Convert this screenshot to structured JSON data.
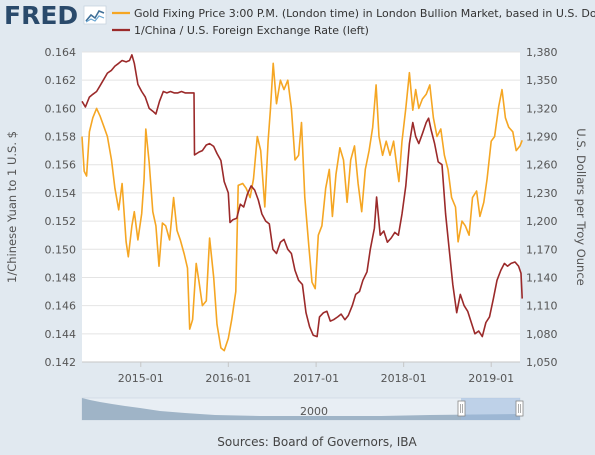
{
  "header": {
    "logo_text": "FRED",
    "logo_icon": "chart-sparkline-icon",
    "legend": [
      {
        "label": "Gold Fixing Price 3:00 P.M. (London time) in London Bullion Market, based in U.S. Dollars (right)",
        "color": "#f5a623"
      },
      {
        "label": "1/China / U.S. Foreign Exchange Rate (left)",
        "color": "#9b2a2a"
      }
    ]
  },
  "footer": {
    "source": "Sources: Board of Governors, IBA",
    "navigator_label": "2000"
  },
  "chart_data": {
    "type": "line",
    "title": "",
    "xlabel": "",
    "x_ticks": [
      "2015-01",
      "2016-01",
      "2017-01",
      "2018-01",
      "2019-01"
    ],
    "x_range": [
      "2014-05",
      "2019-05"
    ],
    "y_left": {
      "label": "1/Chinese Yuan to 1 U.S. $",
      "ticks": [
        "0.142",
        "0.144",
        "0.146",
        "0.148",
        "0.150",
        "0.152",
        "0.154",
        "0.156",
        "0.158",
        "0.160",
        "0.162",
        "0.164"
      ],
      "range": [
        0.142,
        0.164
      ]
    },
    "y_right": {
      "label": "U.S. Dollars per Troy Ounce",
      "ticks": [
        "1,050",
        "1,080",
        "1,110",
        "1,140",
        "1,170",
        "1,200",
        "1,230",
        "1,260",
        "1,290",
        "1,320",
        "1,350",
        "1,380"
      ],
      "range": [
        1050,
        1380
      ]
    },
    "grid": "horizontal",
    "series": [
      {
        "name": "Gold Fixing Price 3:00 P.M. (London time) in London Bullion Market, based in U.S. Dollars (right)",
        "axis": "right",
        "color": "#f5a623",
        "points": [
          [
            "2014-05-01",
            1290
          ],
          [
            "2014-05-10",
            1253
          ],
          [
            "2014-05-20",
            1248
          ],
          [
            "2014-06-01",
            1295
          ],
          [
            "2014-06-15",
            1310
          ],
          [
            "2014-07-01",
            1320
          ],
          [
            "2014-07-15",
            1312
          ],
          [
            "2014-08-01",
            1300
          ],
          [
            "2014-08-15",
            1290
          ],
          [
            "2014-09-01",
            1265
          ],
          [
            "2014-09-15",
            1235
          ],
          [
            "2014-10-01",
            1212
          ],
          [
            "2014-10-15",
            1240
          ],
          [
            "2014-11-01",
            1178
          ],
          [
            "2014-11-10",
            1162
          ],
          [
            "2014-11-25",
            1195
          ],
          [
            "2014-12-05",
            1210
          ],
          [
            "2014-12-20",
            1180
          ],
          [
            "2015-01-05",
            1208
          ],
          [
            "2015-01-15",
            1245
          ],
          [
            "2015-01-22",
            1298
          ],
          [
            "2015-02-05",
            1262
          ],
          [
            "2015-02-20",
            1210
          ],
          [
            "2015-03-05",
            1195
          ],
          [
            "2015-03-18",
            1152
          ],
          [
            "2015-04-01",
            1198
          ],
          [
            "2015-04-15",
            1195
          ],
          [
            "2015-05-01",
            1180
          ],
          [
            "2015-05-18",
            1225
          ],
          [
            "2015-06-01",
            1190
          ],
          [
            "2015-06-15",
            1180
          ],
          [
            "2015-07-01",
            1165
          ],
          [
            "2015-07-15",
            1150
          ],
          [
            "2015-07-24",
            1085
          ],
          [
            "2015-08-05",
            1095
          ],
          [
            "2015-08-20",
            1155
          ],
          [
            "2015-09-01",
            1135
          ],
          [
            "2015-09-15",
            1110
          ],
          [
            "2015-10-01",
            1115
          ],
          [
            "2015-10-15",
            1182
          ],
          [
            "2015-11-01",
            1140
          ],
          [
            "2015-11-15",
            1090
          ],
          [
            "2015-12-01",
            1065
          ],
          [
            "2015-12-15",
            1062
          ],
          [
            "2016-01-01",
            1075
          ],
          [
            "2016-01-15",
            1095
          ],
          [
            "2016-02-01",
            1125
          ],
          [
            "2016-02-11",
            1238
          ],
          [
            "2016-03-01",
            1240
          ],
          [
            "2016-03-15",
            1235
          ],
          [
            "2016-04-01",
            1225
          ],
          [
            "2016-04-15",
            1245
          ],
          [
            "2016-05-01",
            1290
          ],
          [
            "2016-05-15",
            1275
          ],
          [
            "2016-06-01",
            1215
          ],
          [
            "2016-06-15",
            1285
          ],
          [
            "2016-06-25",
            1320
          ],
          [
            "2016-07-06",
            1368
          ],
          [
            "2016-07-20",
            1325
          ],
          [
            "2016-08-05",
            1350
          ],
          [
            "2016-08-20",
            1340
          ],
          [
            "2016-09-05",
            1350
          ],
          [
            "2016-09-20",
            1320
          ],
          [
            "2016-10-05",
            1265
          ],
          [
            "2016-10-20",
            1270
          ],
          [
            "2016-11-01",
            1305
          ],
          [
            "2016-11-15",
            1225
          ],
          [
            "2016-12-01",
            1175
          ],
          [
            "2016-12-15",
            1135
          ],
          [
            "2016-12-28",
            1128
          ],
          [
            "2017-01-10",
            1185
          ],
          [
            "2017-01-25",
            1195
          ],
          [
            "2017-02-10",
            1235
          ],
          [
            "2017-02-25",
            1255
          ],
          [
            "2017-03-10",
            1205
          ],
          [
            "2017-03-25",
            1250
          ],
          [
            "2017-04-10",
            1278
          ],
          [
            "2017-04-25",
            1265
          ],
          [
            "2017-05-10",
            1220
          ],
          [
            "2017-05-25",
            1265
          ],
          [
            "2017-06-10",
            1280
          ],
          [
            "2017-06-25",
            1240
          ],
          [
            "2017-07-10",
            1210
          ],
          [
            "2017-07-25",
            1255
          ],
          [
            "2017-08-10",
            1275
          ],
          [
            "2017-08-25",
            1300
          ],
          [
            "2017-09-08",
            1345
          ],
          [
            "2017-09-20",
            1290
          ],
          [
            "2017-10-05",
            1270
          ],
          [
            "2017-10-20",
            1285
          ],
          [
            "2017-11-05",
            1270
          ],
          [
            "2017-11-20",
            1285
          ],
          [
            "2017-12-05",
            1255
          ],
          [
            "2017-12-12",
            1242
          ],
          [
            "2017-12-25",
            1285
          ],
          [
            "2018-01-10",
            1320
          ],
          [
            "2018-01-25",
            1358
          ],
          [
            "2018-02-08",
            1318
          ],
          [
            "2018-02-20",
            1340
          ],
          [
            "2018-03-05",
            1320
          ],
          [
            "2018-03-20",
            1330
          ],
          [
            "2018-04-05",
            1335
          ],
          [
            "2018-04-20",
            1345
          ],
          [
            "2018-05-05",
            1310
          ],
          [
            "2018-05-20",
            1290
          ],
          [
            "2018-06-05",
            1298
          ],
          [
            "2018-06-20",
            1270
          ],
          [
            "2018-07-05",
            1255
          ],
          [
            "2018-07-20",
            1225
          ],
          [
            "2018-08-05",
            1215
          ],
          [
            "2018-08-16",
            1178
          ],
          [
            "2018-09-01",
            1200
          ],
          [
            "2018-09-15",
            1195
          ],
          [
            "2018-10-01",
            1185
          ],
          [
            "2018-10-15",
            1225
          ],
          [
            "2018-11-01",
            1232
          ],
          [
            "2018-11-15",
            1205
          ],
          [
            "2018-12-01",
            1220
          ],
          [
            "2018-12-15",
            1245
          ],
          [
            "2019-01-01",
            1285
          ],
          [
            "2019-01-15",
            1290
          ],
          [
            "2019-02-01",
            1322
          ],
          [
            "2019-02-15",
            1340
          ],
          [
            "2019-03-01",
            1310
          ],
          [
            "2019-03-15",
            1300
          ],
          [
            "2019-04-01",
            1295
          ],
          [
            "2019-04-15",
            1275
          ],
          [
            "2019-05-01",
            1280
          ],
          [
            "2019-05-10",
            1286
          ]
        ]
      },
      {
        "name": "1/China / U.S. Foreign Exchange Rate (left)",
        "axis": "left",
        "color": "#9b2a2a",
        "points": [
          [
            "2014-05-01",
            0.1605
          ],
          [
            "2014-05-15",
            0.1601
          ],
          [
            "2014-06-01",
            0.1608
          ],
          [
            "2014-06-15",
            0.161
          ],
          [
            "2014-07-01",
            0.1612
          ],
          [
            "2014-07-15",
            0.1616
          ],
          [
            "2014-08-01",
            0.1621
          ],
          [
            "2014-08-15",
            0.1625
          ],
          [
            "2014-09-01",
            0.1627
          ],
          [
            "2014-09-15",
            0.163
          ],
          [
            "2014-10-01",
            0.1632
          ],
          [
            "2014-10-15",
            0.1634
          ],
          [
            "2014-11-01",
            0.1633
          ],
          [
            "2014-11-15",
            0.1634
          ],
          [
            "2014-11-25",
            0.1638
          ],
          [
            "2014-12-05",
            0.1632
          ],
          [
            "2014-12-20",
            0.1617
          ],
          [
            "2015-01-05",
            0.1612
          ],
          [
            "2015-01-20",
            0.1608
          ],
          [
            "2015-02-05",
            0.16
          ],
          [
            "2015-02-20",
            0.1598
          ],
          [
            "2015-03-05",
            0.1596
          ],
          [
            "2015-03-20",
            0.1605
          ],
          [
            "2015-04-05",
            0.1612
          ],
          [
            "2015-04-20",
            0.1611
          ],
          [
            "2015-05-05",
            0.1612
          ],
          [
            "2015-05-20",
            0.1611
          ],
          [
            "2015-06-05",
            0.1611
          ],
          [
            "2015-06-20",
            0.1612
          ],
          [
            "2015-07-05",
            0.1611
          ],
          [
            "2015-07-20",
            0.1611
          ],
          [
            "2015-08-05",
            0.1611
          ],
          [
            "2015-08-11",
            0.1611
          ],
          [
            "2015-08-13",
            0.1567
          ],
          [
            "2015-09-01",
            0.1569
          ],
          [
            "2015-09-15",
            0.157
          ],
          [
            "2015-10-01",
            0.1574
          ],
          [
            "2015-10-15",
            0.1575
          ],
          [
            "2015-11-01",
            0.1573
          ],
          [
            "2015-11-15",
            0.1568
          ],
          [
            "2015-12-01",
            0.1563
          ],
          [
            "2015-12-15",
            0.1548
          ],
          [
            "2016-01-01",
            0.154
          ],
          [
            "2016-01-08",
            0.1519
          ],
          [
            "2016-01-20",
            0.1521
          ],
          [
            "2016-02-05",
            0.1522
          ],
          [
            "2016-02-20",
            0.1532
          ],
          [
            "2016-03-05",
            0.153
          ],
          [
            "2016-03-20",
            0.1539
          ],
          [
            "2016-04-05",
            0.1545
          ],
          [
            "2016-04-20",
            0.1542
          ],
          [
            "2016-05-05",
            0.1535
          ],
          [
            "2016-05-20",
            0.1525
          ],
          [
            "2016-06-05",
            0.152
          ],
          [
            "2016-06-20",
            0.1518
          ],
          [
            "2016-07-05",
            0.15
          ],
          [
            "2016-07-20",
            0.1497
          ],
          [
            "2016-08-05",
            0.1505
          ],
          [
            "2016-08-20",
            0.1507
          ],
          [
            "2016-09-05",
            0.15
          ],
          [
            "2016-09-20",
            0.1497
          ],
          [
            "2016-10-05",
            0.1485
          ],
          [
            "2016-10-20",
            0.1478
          ],
          [
            "2016-11-05",
            0.1475
          ],
          [
            "2016-11-20",
            0.1455
          ],
          [
            "2016-12-05",
            0.1445
          ],
          [
            "2016-12-20",
            0.1439
          ],
          [
            "2017-01-05",
            0.1438
          ],
          [
            "2017-01-15",
            0.1452
          ],
          [
            "2017-02-01",
            0.1455
          ],
          [
            "2017-02-15",
            0.1456
          ],
          [
            "2017-03-01",
            0.1449
          ],
          [
            "2017-03-15",
            0.145
          ],
          [
            "2017-04-01",
            0.1452
          ],
          [
            "2017-04-15",
            0.1454
          ],
          [
            "2017-05-01",
            0.145
          ],
          [
            "2017-05-15",
            0.1453
          ],
          [
            "2017-06-01",
            0.146
          ],
          [
            "2017-06-15",
            0.1468
          ],
          [
            "2017-07-01",
            0.147
          ],
          [
            "2017-07-15",
            0.1478
          ],
          [
            "2017-08-01",
            0.1484
          ],
          [
            "2017-08-15",
            0.15
          ],
          [
            "2017-09-01",
            0.1515
          ],
          [
            "2017-09-10",
            0.1537
          ],
          [
            "2017-09-25",
            0.151
          ],
          [
            "2017-10-10",
            0.1513
          ],
          [
            "2017-10-25",
            0.1505
          ],
          [
            "2017-11-10",
            0.1508
          ],
          [
            "2017-11-25",
            0.1512
          ],
          [
            "2017-12-10",
            0.151
          ],
          [
            "2017-12-25",
            0.1525
          ],
          [
            "2018-01-10",
            0.1545
          ],
          [
            "2018-01-25",
            0.1575
          ],
          [
            "2018-02-08",
            0.159
          ],
          [
            "2018-02-20",
            0.158
          ],
          [
            "2018-03-05",
            0.1575
          ],
          [
            "2018-03-20",
            0.1582
          ],
          [
            "2018-04-05",
            0.159
          ],
          [
            "2018-04-15",
            0.1593
          ],
          [
            "2018-04-25",
            0.1585
          ],
          [
            "2018-05-10",
            0.1575
          ],
          [
            "2018-05-25",
            0.1562
          ],
          [
            "2018-06-10",
            0.156
          ],
          [
            "2018-06-25",
            0.1525
          ],
          [
            "2018-07-10",
            0.15
          ],
          [
            "2018-07-25",
            0.1475
          ],
          [
            "2018-08-10",
            0.1455
          ],
          [
            "2018-08-25",
            0.1468
          ],
          [
            "2018-09-10",
            0.146
          ],
          [
            "2018-09-25",
            0.1456
          ],
          [
            "2018-10-10",
            0.1448
          ],
          [
            "2018-10-25",
            0.144
          ],
          [
            "2018-11-10",
            0.1442
          ],
          [
            "2018-11-25",
            0.1438
          ],
          [
            "2018-12-10",
            0.1448
          ],
          [
            "2018-12-25",
            0.1452
          ],
          [
            "2019-01-10",
            0.1465
          ],
          [
            "2019-01-25",
            0.1478
          ],
          [
            "2019-02-10",
            0.1485
          ],
          [
            "2019-02-25",
            0.149
          ],
          [
            "2019-03-10",
            0.1488
          ],
          [
            "2019-03-25",
            0.149
          ],
          [
            "2019-04-10",
            0.1491
          ],
          [
            "2019-04-25",
            0.1488
          ],
          [
            "2019-05-05",
            0.1483
          ],
          [
            "2019-05-10",
            0.1465
          ]
        ]
      }
    ]
  }
}
